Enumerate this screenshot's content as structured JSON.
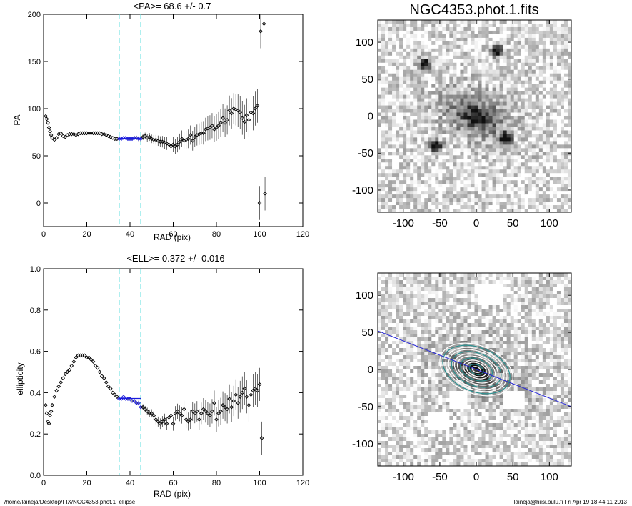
{
  "footer": {
    "path": "/home/laineja/Desktop/FIX/NGC4353.phot.1_ellipse",
    "stamp": "laineja@hiisi.oulu.fi  Fri Apr 19 18:44:11 2013"
  },
  "colors": {
    "marker": "#000000",
    "fit": "#1a1adc",
    "range_lines": "#66e0e0",
    "contour": "#2a8f8f"
  },
  "chart_data": [
    {
      "type": "scatter",
      "title": "<PA>=  68.6 +/-   0.7",
      "xlabel": "RAD (pix)",
      "ylabel": "PA",
      "xlim": [
        0,
        120
      ],
      "ylim": [
        -25,
        200
      ],
      "xticks": [
        0,
        20,
        40,
        60,
        80,
        100,
        120
      ],
      "yticks": [
        0,
        50,
        100,
        150,
        200
      ],
      "vlines": [
        35,
        45
      ],
      "fit_range": [
        35,
        45
      ],
      "fit_value": 68.6,
      "points": [
        [
          1,
          92
        ],
        [
          1.5,
          89
        ],
        [
          2,
          85
        ],
        [
          2.5,
          80
        ],
        [
          3,
          76
        ],
        [
          3.5,
          72
        ],
        [
          4,
          69
        ],
        [
          5,
          67
        ],
        [
          6,
          69
        ],
        [
          7,
          73
        ],
        [
          8,
          74
        ],
        [
          9,
          71
        ],
        [
          10,
          70
        ],
        [
          11,
          72
        ],
        [
          12,
          73
        ],
        [
          13,
          73
        ],
        [
          14,
          73
        ],
        [
          15,
          72
        ],
        [
          16,
          73
        ],
        [
          17,
          74
        ],
        [
          18,
          74
        ],
        [
          19,
          74
        ],
        [
          20,
          74
        ],
        [
          21,
          74
        ],
        [
          22,
          74
        ],
        [
          23,
          74
        ],
        [
          24,
          74
        ],
        [
          25,
          74
        ],
        [
          26,
          74
        ],
        [
          27,
          73
        ],
        [
          28,
          73
        ],
        [
          29,
          72
        ],
        [
          30,
          71
        ],
        [
          31,
          70
        ],
        [
          32,
          69
        ],
        [
          33,
          68
        ],
        [
          34,
          68
        ],
        [
          35,
          68
        ],
        [
          36,
          68
        ],
        [
          37,
          69
        ],
        [
          38,
          69
        ],
        [
          39,
          68
        ],
        [
          40,
          68
        ],
        [
          41,
          68
        ],
        [
          42,
          69
        ],
        [
          43,
          69
        ],
        [
          44,
          68
        ],
        [
          45,
          68
        ],
        [
          46,
          70
        ],
        [
          47,
          71
        ],
        [
          48,
          69
        ],
        [
          49,
          70
        ],
        [
          50,
          68
        ],
        [
          51,
          67
        ],
        [
          52,
          67
        ],
        [
          53,
          66
        ],
        [
          54,
          65
        ],
        [
          55,
          65
        ],
        [
          56,
          64
        ],
        [
          57,
          63
        ],
        [
          58,
          62
        ],
        [
          59,
          60
        ],
        [
          60,
          62
        ],
        [
          61,
          60
        ],
        [
          62,
          62
        ],
        [
          63,
          65
        ],
        [
          64,
          68
        ],
        [
          65,
          66
        ],
        [
          66,
          67
        ],
        [
          67,
          68
        ],
        [
          68,
          72
        ],
        [
          69,
          66
        ],
        [
          70,
          70
        ],
        [
          71,
          72
        ],
        [
          72,
          73
        ],
        [
          73,
          74
        ],
        [
          74,
          74
        ],
        [
          75,
          78
        ],
        [
          76,
          79
        ],
        [
          77,
          80
        ],
        [
          78,
          82
        ],
        [
          79,
          78
        ],
        [
          80,
          80
        ],
        [
          81,
          82
        ],
        [
          82,
          85
        ],
        [
          83,
          90
        ],
        [
          84,
          85
        ],
        [
          85,
          88
        ],
        [
          86,
          98
        ],
        [
          87,
          95
        ],
        [
          88,
          100
        ],
        [
          89,
          99
        ],
        [
          90,
          98
        ],
        [
          91,
          96
        ],
        [
          92,
          90
        ],
        [
          93,
          86
        ],
        [
          94,
          93
        ],
        [
          95,
          88
        ],
        [
          96,
          96
        ],
        [
          97,
          95
        ],
        [
          98,
          100
        ],
        [
          99,
          103
        ],
        [
          100,
          0
        ],
        [
          100.5,
          182
        ],
        [
          102,
          190
        ],
        [
          102.5,
          10
        ]
      ]
    },
    {
      "type": "scatter",
      "title": "<ELL>= 0.372 +/-  0.016",
      "xlabel": "RAD (pix)",
      "ylabel": "ellipticity",
      "xlim": [
        0,
        120
      ],
      "ylim": [
        0.0,
        1.0
      ],
      "xticks": [
        0,
        20,
        40,
        60,
        80,
        100,
        120
      ],
      "yticks": [
        "0.0",
        "0.2",
        "0.4",
        "0.6",
        "0.8",
        "1.0"
      ],
      "vlines": [
        35,
        45
      ],
      "fit_range": [
        35,
        45
      ],
      "fit_value": 0.372,
      "points": [
        [
          1,
          0.34
        ],
        [
          1.5,
          0.3
        ],
        [
          2,
          0.26
        ],
        [
          2.5,
          0.25
        ],
        [
          3,
          0.29
        ],
        [
          3.5,
          0.31
        ],
        [
          4,
          0.34
        ],
        [
          5,
          0.38
        ],
        [
          6,
          0.41
        ],
        [
          7,
          0.43
        ],
        [
          8,
          0.45
        ],
        [
          9,
          0.47
        ],
        [
          10,
          0.49
        ],
        [
          11,
          0.5
        ],
        [
          12,
          0.51
        ],
        [
          13,
          0.53
        ],
        [
          14,
          0.55
        ],
        [
          15,
          0.57
        ],
        [
          16,
          0.58
        ],
        [
          17,
          0.58
        ],
        [
          18,
          0.58
        ],
        [
          19,
          0.58
        ],
        [
          20,
          0.57
        ],
        [
          21,
          0.57
        ],
        [
          22,
          0.56
        ],
        [
          23,
          0.55
        ],
        [
          24,
          0.53
        ],
        [
          25,
          0.52
        ],
        [
          26,
          0.5
        ],
        [
          27,
          0.48
        ],
        [
          28,
          0.47
        ],
        [
          29,
          0.45
        ],
        [
          30,
          0.43
        ],
        [
          31,
          0.42
        ],
        [
          32,
          0.4
        ],
        [
          33,
          0.39
        ],
        [
          34,
          0.38
        ],
        [
          35,
          0.37
        ],
        [
          36,
          0.37
        ],
        [
          37,
          0.38
        ],
        [
          38,
          0.37
        ],
        [
          39,
          0.37
        ],
        [
          40,
          0.37
        ],
        [
          41,
          0.36
        ],
        [
          42,
          0.36
        ],
        [
          43,
          0.35
        ],
        [
          44,
          0.35
        ],
        [
          45,
          0.33
        ],
        [
          46,
          0.33
        ],
        [
          47,
          0.32
        ],
        [
          48,
          0.31
        ],
        [
          49,
          0.3
        ],
        [
          50,
          0.3
        ],
        [
          51,
          0.29
        ],
        [
          52,
          0.27
        ],
        [
          53,
          0.26
        ],
        [
          54,
          0.25
        ],
        [
          55,
          0.26
        ],
        [
          56,
          0.27
        ],
        [
          57,
          0.25
        ],
        [
          58,
          0.28
        ],
        [
          59,
          0.29
        ],
        [
          60,
          0.25
        ],
        [
          61,
          0.3
        ],
        [
          62,
          0.31
        ],
        [
          63,
          0.3
        ],
        [
          64,
          0.29
        ],
        [
          65,
          0.32
        ],
        [
          66,
          0.27
        ],
        [
          67,
          0.26
        ],
        [
          68,
          0.27
        ],
        [
          69,
          0.31
        ],
        [
          70,
          0.3
        ],
        [
          71,
          0.31
        ],
        [
          72,
          0.27
        ],
        [
          73,
          0.3
        ],
        [
          74,
          0.32
        ],
        [
          75,
          0.31
        ],
        [
          76,
          0.3
        ],
        [
          77,
          0.29
        ],
        [
          78,
          0.31
        ],
        [
          79,
          0.35
        ],
        [
          80,
          0.27
        ],
        [
          81,
          0.3
        ],
        [
          82,
          0.31
        ],
        [
          83,
          0.34
        ],
        [
          84,
          0.33
        ],
        [
          85,
          0.32
        ],
        [
          86,
          0.37
        ],
        [
          87,
          0.33
        ],
        [
          88,
          0.36
        ],
        [
          89,
          0.39
        ],
        [
          90,
          0.35
        ],
        [
          91,
          0.38
        ],
        [
          92,
          0.4
        ],
        [
          93,
          0.42
        ],
        [
          94,
          0.38
        ],
        [
          95,
          0.34
        ],
        [
          96,
          0.39
        ],
        [
          97,
          0.41
        ],
        [
          98,
          0.42
        ],
        [
          99,
          0.41
        ],
        [
          100,
          0.44
        ],
        [
          101,
          0.18
        ]
      ]
    },
    {
      "type": "heatmap",
      "title": "NGC4353.phot.1.fits",
      "xlim": [
        -135,
        130
      ],
      "ylim": [
        -130,
        130
      ],
      "xticks": [
        "-100",
        "-50",
        "0",
        "50",
        "100"
      ],
      "yticks": [
        "100",
        "50",
        "0",
        "-50",
        "-100"
      ],
      "galaxy": {
        "pa_deg": 68.6,
        "ellipticity": 0.372,
        "scale": 45,
        "center": [
          0,
          0
        ]
      },
      "stars": [
        [
          28,
          88
        ],
        [
          -55,
          -40
        ],
        [
          40,
          -30
        ],
        [
          -70,
          70
        ]
      ]
    },
    {
      "type": "heatmap",
      "title": "",
      "xlim": [
        -135,
        130
      ],
      "ylim": [
        -130,
        130
      ],
      "xticks": [
        "-100",
        "-50",
        "0",
        "50",
        "100"
      ],
      "yticks": [
        "100",
        "50",
        "0",
        "-50",
        "-100"
      ],
      "galaxy": {
        "pa_deg": 68.6,
        "ellipticity": 0.372,
        "scale": 45,
        "center": [
          0,
          0
        ]
      },
      "contours": 12,
      "masks": [
        [
          25,
          100
        ],
        [
          20,
          105
        ],
        [
          -50,
          -70
        ],
        [
          50,
          -40
        ],
        [
          -25,
          -40
        ]
      ],
      "line": {
        "x1": -135,
        "y1": 52,
        "x2": 130,
        "y2": -50
      }
    }
  ]
}
